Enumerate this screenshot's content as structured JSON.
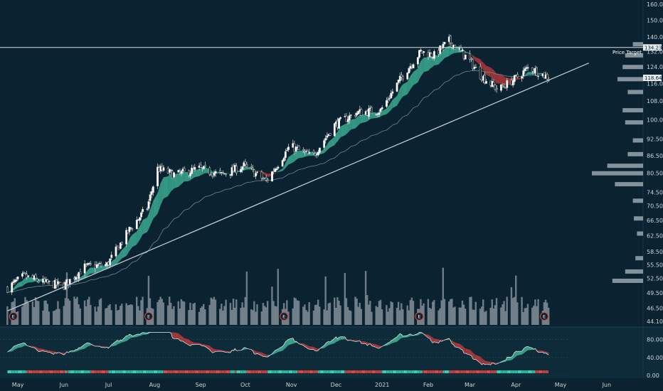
{
  "colors": {
    "background": "#0b2230",
    "indicator_background": "#0e2b3a",
    "bull": "#2bd6b0",
    "bear": "#e0463f",
    "band_bull": "#3fb59a",
    "band_bear": "#b83b3b",
    "trendline": "#bfc7cc",
    "volume": "#8f9ba3",
    "profile": "#aeb8bf",
    "axis_text": "#c9d3da"
  },
  "labels": {
    "price_target": "Price Target",
    "price_target_tag": "134.23",
    "last_price_tag": "118.64",
    "earnings_marker": "E"
  },
  "chart_data": [
    {
      "type": "candlestick",
      "title": "",
      "y_scale": "log",
      "ylim": [
        44.1,
        160.0
      ],
      "y_ticks": [
        "160.00",
        "150.00",
        "140.00",
        "132.00",
        "124.00",
        "116.00",
        "108.00",
        "100.00",
        "92.50",
        "86.50",
        "80.50",
        "74.50",
        "70.50",
        "66.50",
        "62.50",
        "58.50",
        "55.50",
        "52.50",
        "49.50",
        "46.50",
        "44.10"
      ],
      "x_ticks": [
        "May",
        "Jun",
        "Jul",
        "Aug",
        "Sep",
        "Oct",
        "Nov",
        "Dec",
        "2021",
        "Feb",
        "Mar",
        "Apr",
        "May",
        "Jun"
      ],
      "close_path": [
        {
          "date": "2020-04-24",
          "close": 50.5
        },
        {
          "date": "2020-05-05",
          "close": 53.0
        },
        {
          "date": "2020-05-20",
          "close": 51.5
        },
        {
          "date": "2020-06-01",
          "close": 51.0
        },
        {
          "date": "2020-06-15",
          "close": 55.0
        },
        {
          "date": "2020-06-30",
          "close": 55.5
        },
        {
          "date": "2020-07-15",
          "close": 64.0
        },
        {
          "date": "2020-07-27",
          "close": 70.0
        },
        {
          "date": "2020-08-03",
          "close": 82.0
        },
        {
          "date": "2020-08-15",
          "close": 80.0
        },
        {
          "date": "2020-08-31",
          "close": 82.0
        },
        {
          "date": "2020-09-15",
          "close": 80.0
        },
        {
          "date": "2020-09-30",
          "close": 83.0
        },
        {
          "date": "2020-10-15",
          "close": 78.0
        },
        {
          "date": "2020-10-31",
          "close": 90.0
        },
        {
          "date": "2020-11-15",
          "close": 86.0
        },
        {
          "date": "2020-11-30",
          "close": 98.0
        },
        {
          "date": "2020-12-15",
          "close": 103.0
        },
        {
          "date": "2020-12-31",
          "close": 104.0
        },
        {
          "date": "2021-01-15",
          "close": 120.0
        },
        {
          "date": "2021-01-27",
          "close": 132.0
        },
        {
          "date": "2021-02-05",
          "close": 130.0
        },
        {
          "date": "2021-02-15",
          "close": 138.0
        },
        {
          "date": "2021-02-28",
          "close": 128.0
        },
        {
          "date": "2021-03-08",
          "close": 120.0
        },
        {
          "date": "2021-03-20",
          "close": 113.0
        },
        {
          "date": "2021-03-31",
          "close": 118.0
        },
        {
          "date": "2021-04-10",
          "close": 124.0
        },
        {
          "date": "2021-04-23",
          "close": 118.64
        }
      ],
      "price_target": 134.23,
      "last_price": 118.64,
      "trendline": [
        {
          "date": "2020-04-24",
          "price": 46.0
        },
        {
          "date": "2021-05-20",
          "price": 126.0
        }
      ],
      "earnings_dates": [
        "2020-04-28",
        "2020-07-28",
        "2020-10-27",
        "2021-01-26",
        "2021-04-20"
      ],
      "volume_profile": [
        {
          "price": 52.0,
          "weight": 0.6
        },
        {
          "price": 54.0,
          "weight": 0.35
        },
        {
          "price": 57.0,
          "weight": 0.15
        },
        {
          "price": 63.0,
          "weight": 0.12
        },
        {
          "price": 67.0,
          "weight": 0.18
        },
        {
          "price": 72.0,
          "weight": 0.2
        },
        {
          "price": 77.0,
          "weight": 0.55
        },
        {
          "price": 80.5,
          "weight": 1.0
        },
        {
          "price": 83.0,
          "weight": 0.7
        },
        {
          "price": 87.0,
          "weight": 0.3
        },
        {
          "price": 92.0,
          "weight": 0.2
        },
        {
          "price": 99.0,
          "weight": 0.35
        },
        {
          "price": 104.0,
          "weight": 0.4
        },
        {
          "price": 112.0,
          "weight": 0.3
        },
        {
          "price": 118.0,
          "weight": 0.5
        },
        {
          "price": 124.0,
          "weight": 0.4
        },
        {
          "price": 130.0,
          "weight": 0.35
        },
        {
          "price": 136.0,
          "weight": 0.2
        }
      ]
    },
    {
      "type": "line",
      "title": "",
      "ylim": [
        0,
        100
      ],
      "y_ticks": [
        "80.00",
        "40.00",
        "0.00"
      ]
    }
  ]
}
